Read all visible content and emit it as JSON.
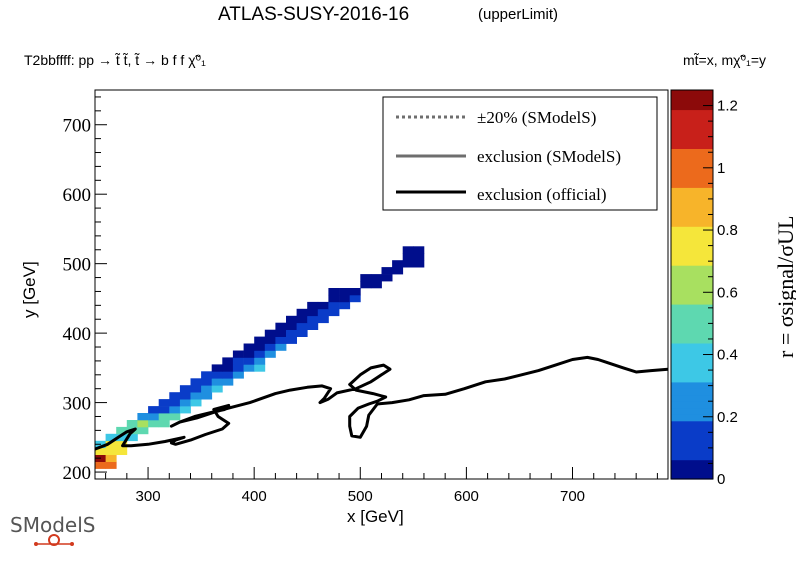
{
  "header": {
    "title": "ATLAS-SUSY-2016-16",
    "title_tag": "(upperLimit)",
    "subtitle": "T2bbffff: pp → t̃ t̃, t̃ → b f f χ̃⁰₁",
    "axes_note": "mt̃=x, mχ̃⁰₁=y"
  },
  "logo": {
    "text": "SModelS"
  },
  "legend": {
    "position": "top-right",
    "entries": [
      {
        "label": "±20% (SModelS)",
        "style": "dotted",
        "color": "#6e6e6e"
      },
      {
        "label": "exclusion (SModelS)",
        "style": "solid",
        "color": "#6e6e6e"
      },
      {
        "label": "exclusion (official)",
        "style": "solid",
        "color": "#000000"
      }
    ]
  },
  "chart_data": {
    "type": "heatmap",
    "title": "ATLAS-SUSY-2016-16",
    "xlabel": "x [GeV]",
    "ylabel": "y [GeV]",
    "zlabel": "r = σsignal/σUL",
    "xlim": [
      250,
      790
    ],
    "ylim": [
      190,
      750
    ],
    "zlim": [
      0,
      1.25
    ],
    "x_ticks": [
      300,
      400,
      500,
      600,
      700
    ],
    "y_ticks": [
      200,
      300,
      400,
      500,
      600,
      700
    ],
    "z_ticks": [
      0,
      0.2,
      0.4,
      0.6,
      0.8,
      1,
      1.2
    ],
    "colorscale": [
      "#000e8c",
      "#0a3cc8",
      "#1f8fe0",
      "#3dc8e6",
      "#5ed8b0",
      "#a8e060",
      "#f5e63a",
      "#f7b42a",
      "#ec6a1c",
      "#c8201a",
      "#8c0a0a"
    ],
    "cells": [
      {
        "x": 255,
        "y": 210,
        "r": 0.95
      },
      {
        "x": 265,
        "y": 210,
        "r": 1.0
      },
      {
        "x": 255,
        "y": 220,
        "r": 1.25
      },
      {
        "x": 265,
        "y": 220,
        "r": 0.9
      },
      {
        "x": 255,
        "y": 230,
        "r": 0.8
      },
      {
        "x": 265,
        "y": 230,
        "r": 0.8
      },
      {
        "x": 275,
        "y": 230,
        "r": 0.75
      },
      {
        "x": 255,
        "y": 240,
        "r": 0.4
      },
      {
        "x": 265,
        "y": 240,
        "r": 0.75
      },
      {
        "x": 275,
        "y": 240,
        "r": 0.7
      },
      {
        "x": 265,
        "y": 250,
        "r": 0.35
      },
      {
        "x": 275,
        "y": 250,
        "r": 0.35
      },
      {
        "x": 285,
        "y": 250,
        "r": 0.4
      },
      {
        "x": 275,
        "y": 260,
        "r": 0.55
      },
      {
        "x": 285,
        "y": 260,
        "r": 0.55
      },
      {
        "x": 295,
        "y": 260,
        "r": 0.55
      },
      {
        "x": 285,
        "y": 270,
        "r": 0.55
      },
      {
        "x": 295,
        "y": 270,
        "r": 0.6
      },
      {
        "x": 305,
        "y": 270,
        "r": 0.55
      },
      {
        "x": 315,
        "y": 270,
        "r": 0.5
      },
      {
        "x": 295,
        "y": 280,
        "r": 0.2
      },
      {
        "x": 305,
        "y": 280,
        "r": 0.3
      },
      {
        "x": 315,
        "y": 280,
        "r": 0.5
      },
      {
        "x": 325,
        "y": 280,
        "r": 0.55
      },
      {
        "x": 305,
        "y": 290,
        "r": 0.1
      },
      {
        "x": 315,
        "y": 290,
        "r": 0.12
      },
      {
        "x": 325,
        "y": 290,
        "r": 0.3
      },
      {
        "x": 335,
        "y": 290,
        "r": 0.4
      },
      {
        "x": 315,
        "y": 300,
        "r": 0.1
      },
      {
        "x": 325,
        "y": 300,
        "r": 0.1
      },
      {
        "x": 335,
        "y": 300,
        "r": 0.25
      },
      {
        "x": 345,
        "y": 300,
        "r": 0.35
      },
      {
        "x": 325,
        "y": 310,
        "r": 0.1
      },
      {
        "x": 335,
        "y": 310,
        "r": 0.15
      },
      {
        "x": 345,
        "y": 310,
        "r": 0.2
      },
      {
        "x": 355,
        "y": 310,
        "r": 0.3
      },
      {
        "x": 335,
        "y": 320,
        "r": 0.1
      },
      {
        "x": 345,
        "y": 320,
        "r": 0.1
      },
      {
        "x": 355,
        "y": 320,
        "r": 0.2
      },
      {
        "x": 365,
        "y": 320,
        "r": 0.35
      },
      {
        "x": 345,
        "y": 330,
        "r": 0.08
      },
      {
        "x": 355,
        "y": 330,
        "r": 0.1
      },
      {
        "x": 365,
        "y": 330,
        "r": 0.2
      },
      {
        "x": 375,
        "y": 330,
        "r": 0.3
      },
      {
        "x": 355,
        "y": 340,
        "r": 0.08
      },
      {
        "x": 365,
        "y": 340,
        "r": 0.08
      },
      {
        "x": 375,
        "y": 340,
        "r": 0.15
      },
      {
        "x": 385,
        "y": 340,
        "r": 0.3
      },
      {
        "x": 365,
        "y": 350,
        "r": 0.05
      },
      {
        "x": 375,
        "y": 350,
        "r": 0.05
      },
      {
        "x": 385,
        "y": 350,
        "r": 0.1
      },
      {
        "x": 395,
        "y": 350,
        "r": 0.25
      },
      {
        "x": 405,
        "y": 350,
        "r": 0.35
      },
      {
        "x": 375,
        "y": 360,
        "r": 0.05
      },
      {
        "x": 385,
        "y": 360,
        "r": 0.08
      },
      {
        "x": 395,
        "y": 360,
        "r": 0.1
      },
      {
        "x": 405,
        "y": 360,
        "r": 0.2
      },
      {
        "x": 385,
        "y": 370,
        "r": 0.05
      },
      {
        "x": 395,
        "y": 370,
        "r": 0.05
      },
      {
        "x": 405,
        "y": 370,
        "r": 0.1
      },
      {
        "x": 415,
        "y": 370,
        "r": 0.2
      },
      {
        "x": 395,
        "y": 380,
        "r": 0.05
      },
      {
        "x": 405,
        "y": 380,
        "r": 0.05
      },
      {
        "x": 415,
        "y": 380,
        "r": 0.1
      },
      {
        "x": 425,
        "y": 380,
        "r": 0.2
      },
      {
        "x": 405,
        "y": 390,
        "r": 0.05
      },
      {
        "x": 415,
        "y": 390,
        "r": 0.05
      },
      {
        "x": 425,
        "y": 390,
        "r": 0.1
      },
      {
        "x": 435,
        "y": 390,
        "r": 0.15
      },
      {
        "x": 415,
        "y": 400,
        "r": 0.05
      },
      {
        "x": 425,
        "y": 400,
        "r": 0.05
      },
      {
        "x": 435,
        "y": 400,
        "r": 0.1
      },
      {
        "x": 445,
        "y": 400,
        "r": 0.15
      },
      {
        "x": 425,
        "y": 410,
        "r": 0.05
      },
      {
        "x": 435,
        "y": 410,
        "r": 0.05
      },
      {
        "x": 445,
        "y": 410,
        "r": 0.08
      },
      {
        "x": 455,
        "y": 410,
        "r": 0.12
      },
      {
        "x": 435,
        "y": 420,
        "r": 0.03
      },
      {
        "x": 445,
        "y": 420,
        "r": 0.05
      },
      {
        "x": 455,
        "y": 420,
        "r": 0.08
      },
      {
        "x": 465,
        "y": 420,
        "r": 0.1
      },
      {
        "x": 445,
        "y": 430,
        "r": 0.03
      },
      {
        "x": 455,
        "y": 430,
        "r": 0.05
      },
      {
        "x": 465,
        "y": 430,
        "r": 0.08
      },
      {
        "x": 475,
        "y": 430,
        "r": 0.1
      },
      {
        "x": 455,
        "y": 440,
        "r": 0.03
      },
      {
        "x": 465,
        "y": 440,
        "r": 0.05
      },
      {
        "x": 475,
        "y": 440,
        "r": 0.08
      },
      {
        "x": 485,
        "y": 440,
        "r": 0.1
      },
      {
        "x": 475,
        "y": 450,
        "r": 0.03
      },
      {
        "x": 485,
        "y": 450,
        "r": 0.05
      },
      {
        "x": 495,
        "y": 450,
        "r": 0.1
      },
      {
        "x": 475,
        "y": 460,
        "r": 0.03
      },
      {
        "x": 485,
        "y": 460,
        "r": 0.03
      },
      {
        "x": 495,
        "y": 460,
        "r": 0.05
      },
      {
        "x": 505,
        "y": 470,
        "r": 0.03
      },
      {
        "x": 515,
        "y": 470,
        "r": 0.05
      },
      {
        "x": 505,
        "y": 480,
        "r": 0.03
      },
      {
        "x": 515,
        "y": 480,
        "r": 0.03
      },
      {
        "x": 525,
        "y": 480,
        "r": 0.05
      },
      {
        "x": 525,
        "y": 490,
        "r": 0.03
      },
      {
        "x": 535,
        "y": 490,
        "r": 0.03
      },
      {
        "x": 535,
        "y": 500,
        "r": 0.03
      },
      {
        "x": 545,
        "y": 500,
        "r": 0.03
      },
      {
        "x": 555,
        "y": 500,
        "r": 0.03
      },
      {
        "x": 545,
        "y": 510,
        "r": 0.03
      },
      {
        "x": 555,
        "y": 510,
        "r": 0.03
      },
      {
        "x": 545,
        "y": 520,
        "r": 0.03
      },
      {
        "x": 555,
        "y": 520,
        "r": 0.03
      }
    ],
    "official_exclusion": [
      [
        250,
        233
      ],
      [
        262,
        240
      ],
      [
        272,
        250
      ],
      [
        280,
        258
      ],
      [
        288,
        262
      ],
      [
        283,
        255
      ],
      [
        276,
        238
      ],
      [
        284,
        238
      ],
      [
        300,
        240
      ],
      [
        316,
        244
      ],
      [
        334,
        250
      ],
      [
        326,
        246
      ],
      [
        322,
        242
      ],
      [
        326,
        240
      ],
      [
        340,
        246
      ],
      [
        354,
        254
      ],
      [
        370,
        262
      ],
      [
        376,
        270
      ],
      [
        366,
        280
      ],
      [
        362,
        290
      ],
      [
        376,
        296
      ],
      [
        372,
        290
      ],
      [
        360,
        286
      ],
      [
        344,
        280
      ],
      [
        330,
        272
      ],
      [
        322,
        266
      ],
      [
        330,
        272
      ],
      [
        346,
        278
      ],
      [
        362,
        286
      ],
      [
        376,
        292
      ],
      [
        396,
        300
      ],
      [
        420,
        313
      ],
      [
        434,
        318
      ],
      [
        450,
        322
      ],
      [
        464,
        324
      ],
      [
        472,
        320
      ],
      [
        466,
        306
      ],
      [
        462,
        300
      ],
      [
        470,
        305
      ],
      [
        478,
        314
      ],
      [
        496,
        320
      ],
      [
        510,
        330
      ],
      [
        520,
        340
      ],
      [
        528,
        348
      ],
      [
        522,
        354
      ],
      [
        510,
        350
      ],
      [
        500,
        340
      ],
      [
        490,
        326
      ],
      [
        496,
        318
      ],
      [
        512,
        313
      ],
      [
        524,
        308
      ],
      [
        516,
        302
      ],
      [
        508,
        298
      ],
      [
        498,
        292
      ],
      [
        490,
        280
      ],
      [
        490,
        266
      ],
      [
        492,
        252
      ],
      [
        500,
        250
      ],
      [
        506,
        266
      ],
      [
        508,
        282
      ],
      [
        516,
        298
      ],
      [
        530,
        300
      ],
      [
        546,
        304
      ],
      [
        560,
        310
      ],
      [
        580,
        312
      ],
      [
        598,
        320
      ],
      [
        618,
        330
      ],
      [
        636,
        334
      ],
      [
        652,
        340
      ],
      [
        668,
        346
      ],
      [
        684,
        354
      ],
      [
        700,
        362
      ],
      [
        714,
        365
      ],
      [
        724,
        362
      ],
      [
        732,
        358
      ],
      [
        748,
        350
      ],
      [
        760,
        344
      ],
      [
        774,
        346
      ],
      [
        790,
        348
      ]
    ]
  }
}
